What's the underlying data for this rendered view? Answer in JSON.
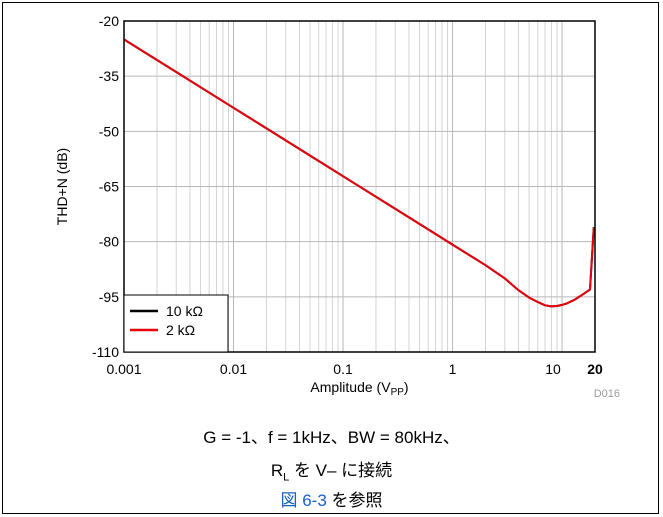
{
  "chart_data": {
    "type": "line",
    "xscale": "log",
    "xlabel_main": "Amplitude (V",
    "xlabel_sub": "PP",
    "xlabel_tail": ")",
    "ylabel": "THD+N (dB)",
    "xlim": [
      0.001,
      20
    ],
    "ylim": [
      -110,
      -20
    ],
    "x_ticks": [
      {
        "v": 0.001,
        "label": "0.001"
      },
      {
        "v": 0.01,
        "label": "0.01"
      },
      {
        "v": 0.1,
        "label": "0.1"
      },
      {
        "v": 1,
        "label": "1"
      },
      {
        "v": 10,
        "label": "10"
      },
      {
        "v": 20,
        "label": "20"
      }
    ],
    "y_ticks": [
      -20,
      -35,
      -50,
      -65,
      -80,
      -95,
      -110
    ],
    "grid": true,
    "legend_position": "bottom-left",
    "watermark": "D016",
    "series": [
      {
        "name": "10 kΩ",
        "color": "#000000",
        "points": [
          [
            0.001,
            -25
          ],
          [
            0.002,
            -30.6
          ],
          [
            0.005,
            -38
          ],
          [
            0.01,
            -43.6
          ],
          [
            0.02,
            -49.2
          ],
          [
            0.05,
            -56.6
          ],
          [
            0.1,
            -62.2
          ],
          [
            0.2,
            -67.8
          ],
          [
            0.5,
            -75.2
          ],
          [
            1,
            -80.8
          ],
          [
            2,
            -86.4
          ],
          [
            3,
            -90
          ],
          [
            4,
            -93.2
          ],
          [
            5,
            -95.2
          ],
          [
            6,
            -96.4
          ],
          [
            7,
            -97.3
          ],
          [
            8,
            -97.6
          ],
          [
            9,
            -97.5
          ],
          [
            10,
            -97.2
          ],
          [
            11,
            -96.8
          ],
          [
            13,
            -95.8
          ],
          [
            15,
            -94.6
          ],
          [
            17,
            -93.5
          ],
          [
            18,
            -93
          ],
          [
            19.5,
            -76
          ]
        ]
      },
      {
        "name": "2 kΩ",
        "color": "#e8000b",
        "points": [
          [
            0.001,
            -25
          ],
          [
            0.002,
            -30.6
          ],
          [
            0.005,
            -38
          ],
          [
            0.01,
            -43.6
          ],
          [
            0.02,
            -49.2
          ],
          [
            0.05,
            -56.6
          ],
          [
            0.1,
            -62.2
          ],
          [
            0.2,
            -67.8
          ],
          [
            0.5,
            -75.2
          ],
          [
            1,
            -80.8
          ],
          [
            2,
            -86.4
          ],
          [
            3,
            -90
          ],
          [
            4,
            -93.2
          ],
          [
            5,
            -95.2
          ],
          [
            6,
            -96.4
          ],
          [
            7,
            -97.3
          ],
          [
            8,
            -97.6
          ],
          [
            9,
            -97.5
          ],
          [
            10,
            -97.2
          ],
          [
            11,
            -96.8
          ],
          [
            13,
            -95.8
          ],
          [
            15,
            -94.6
          ],
          [
            17,
            -93.5
          ],
          [
            18,
            -93
          ],
          [
            19.5,
            -76
          ]
        ]
      }
    ]
  },
  "caption": {
    "line1": "G = -1、f = 1kHz、BW = 80kHz、",
    "line2_main": "R",
    "line2_sub": "L",
    "line2_tail": " を V– に接続",
    "line3_link": "図 6-3",
    "line3_tail": " を参照"
  }
}
